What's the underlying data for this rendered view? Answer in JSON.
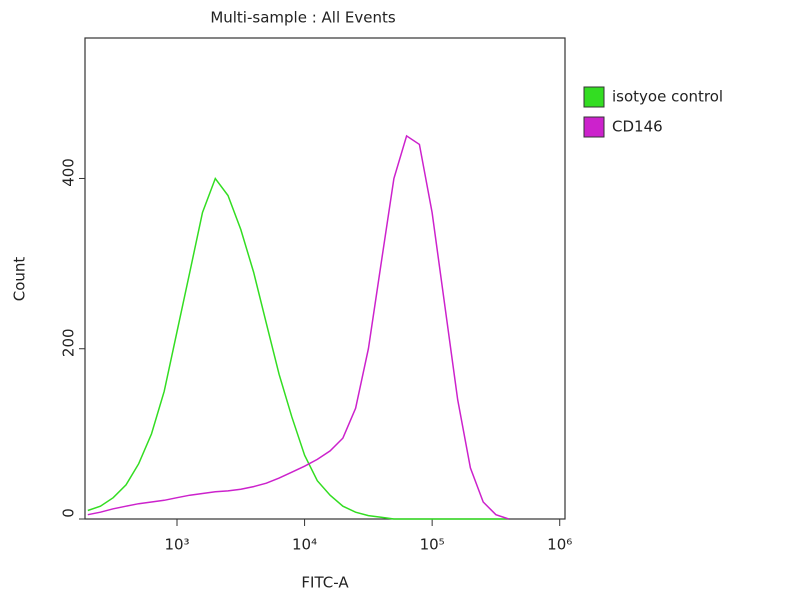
{
  "chart_data": {
    "type": "line",
    "title": "Multi-sample : All Events",
    "x_label": "FITC-A",
    "y_label": "Count",
    "xscale": "log",
    "xlim": [
      190,
      1100000
    ],
    "ylim": [
      0,
      565
    ],
    "xticks": [
      {
        "value": 1000,
        "label": "10³"
      },
      {
        "value": 10000,
        "label": "10⁴"
      },
      {
        "value": 100000,
        "label": "10⁵"
      },
      {
        "value": 1000000,
        "label": "10⁶"
      }
    ],
    "yticks": [
      0,
      200,
      400
    ],
    "legend": "right",
    "x": [
      200,
      251,
      316,
      398,
      501,
      631,
      794,
      1000,
      1259,
      1585,
      1995,
      2512,
      3162,
      3981,
      5012,
      6310,
      7943,
      10000,
      12589,
      15849,
      19953,
      25119,
      31623,
      39811,
      50119,
      63096,
      79433,
      100000,
      125893,
      158489,
      199526,
      251189,
      316228,
      398107
    ],
    "series": [
      {
        "name": "isotyoe control",
        "color": "#33dd22",
        "values": [
          10,
          15,
          25,
          40,
          65,
          100,
          150,
          220,
          290,
          360,
          400,
          380,
          340,
          290,
          230,
          170,
          120,
          75,
          45,
          28,
          15,
          8,
          4,
          2,
          0,
          0,
          0,
          0,
          0,
          0,
          0,
          0,
          0,
          0
        ]
      },
      {
        "name": "CD146",
        "color": "#cc22cc",
        "values": [
          5,
          8,
          12,
          15,
          18,
          20,
          22,
          25,
          28,
          30,
          32,
          33,
          35,
          38,
          42,
          48,
          55,
          62,
          70,
          80,
          95,
          130,
          200,
          300,
          400,
          450,
          440,
          360,
          250,
          140,
          60,
          20,
          5,
          0
        ]
      }
    ]
  }
}
